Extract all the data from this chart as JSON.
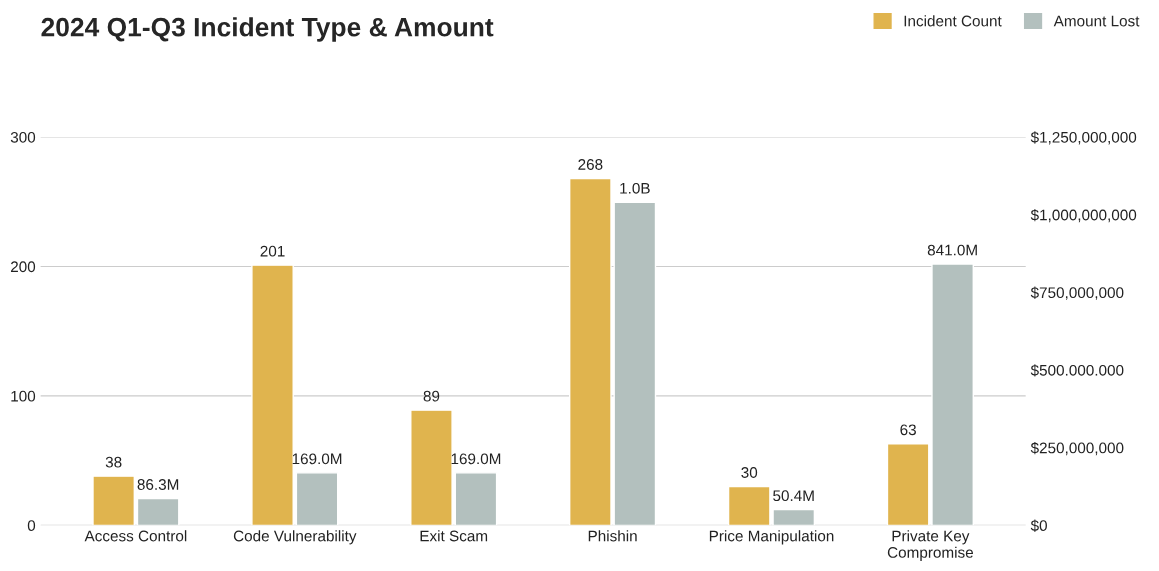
{
  "chart_data": {
    "type": "bar",
    "title": "2024 Q1-Q3 Incident Type & Amount",
    "categories": [
      "Access Control",
      "Code Vulnerability",
      "Exit Scam",
      "Phishin",
      "Price Manipulation",
      "Private Key\nCompromise"
    ],
    "series": [
      {
        "name": "Incident Count",
        "color": "#e0b44e",
        "values": [
          38,
          201,
          89,
          268,
          30,
          63
        ],
        "value_labels": [
          "38",
          "201",
          "89",
          "268",
          "30",
          "63"
        ]
      },
      {
        "name": "Amount Lost",
        "color": "#b3c0be",
        "axis": "y2",
        "values": [
          86300000,
          169000000,
          169000000,
          1040000000,
          50400000,
          841000000
        ],
        "value_labels": [
          "86.3M",
          "169.0M",
          "169.0M",
          "1.0B",
          "50.4M",
          "841.0M"
        ]
      }
    ],
    "ylim": [
      0,
      300
    ],
    "yticks": [
      0,
      100,
      200,
      300
    ],
    "y2lim": [
      0,
      1250000000
    ],
    "y2ticks": [
      {
        "value": 0,
        "label": "$0"
      },
      {
        "value": 250000000,
        "label": "$250,000,000"
      },
      {
        "value": 500000000,
        "label": "$500.000.000"
      },
      {
        "value": 750000000,
        "label": "$750,000,000"
      },
      {
        "value": 1000000000,
        "label": "$1,000,000,000"
      },
      {
        "value": 1250000000,
        "label": "$1,250,000,000"
      }
    ],
    "grid": "y",
    "legend": "top right"
  }
}
